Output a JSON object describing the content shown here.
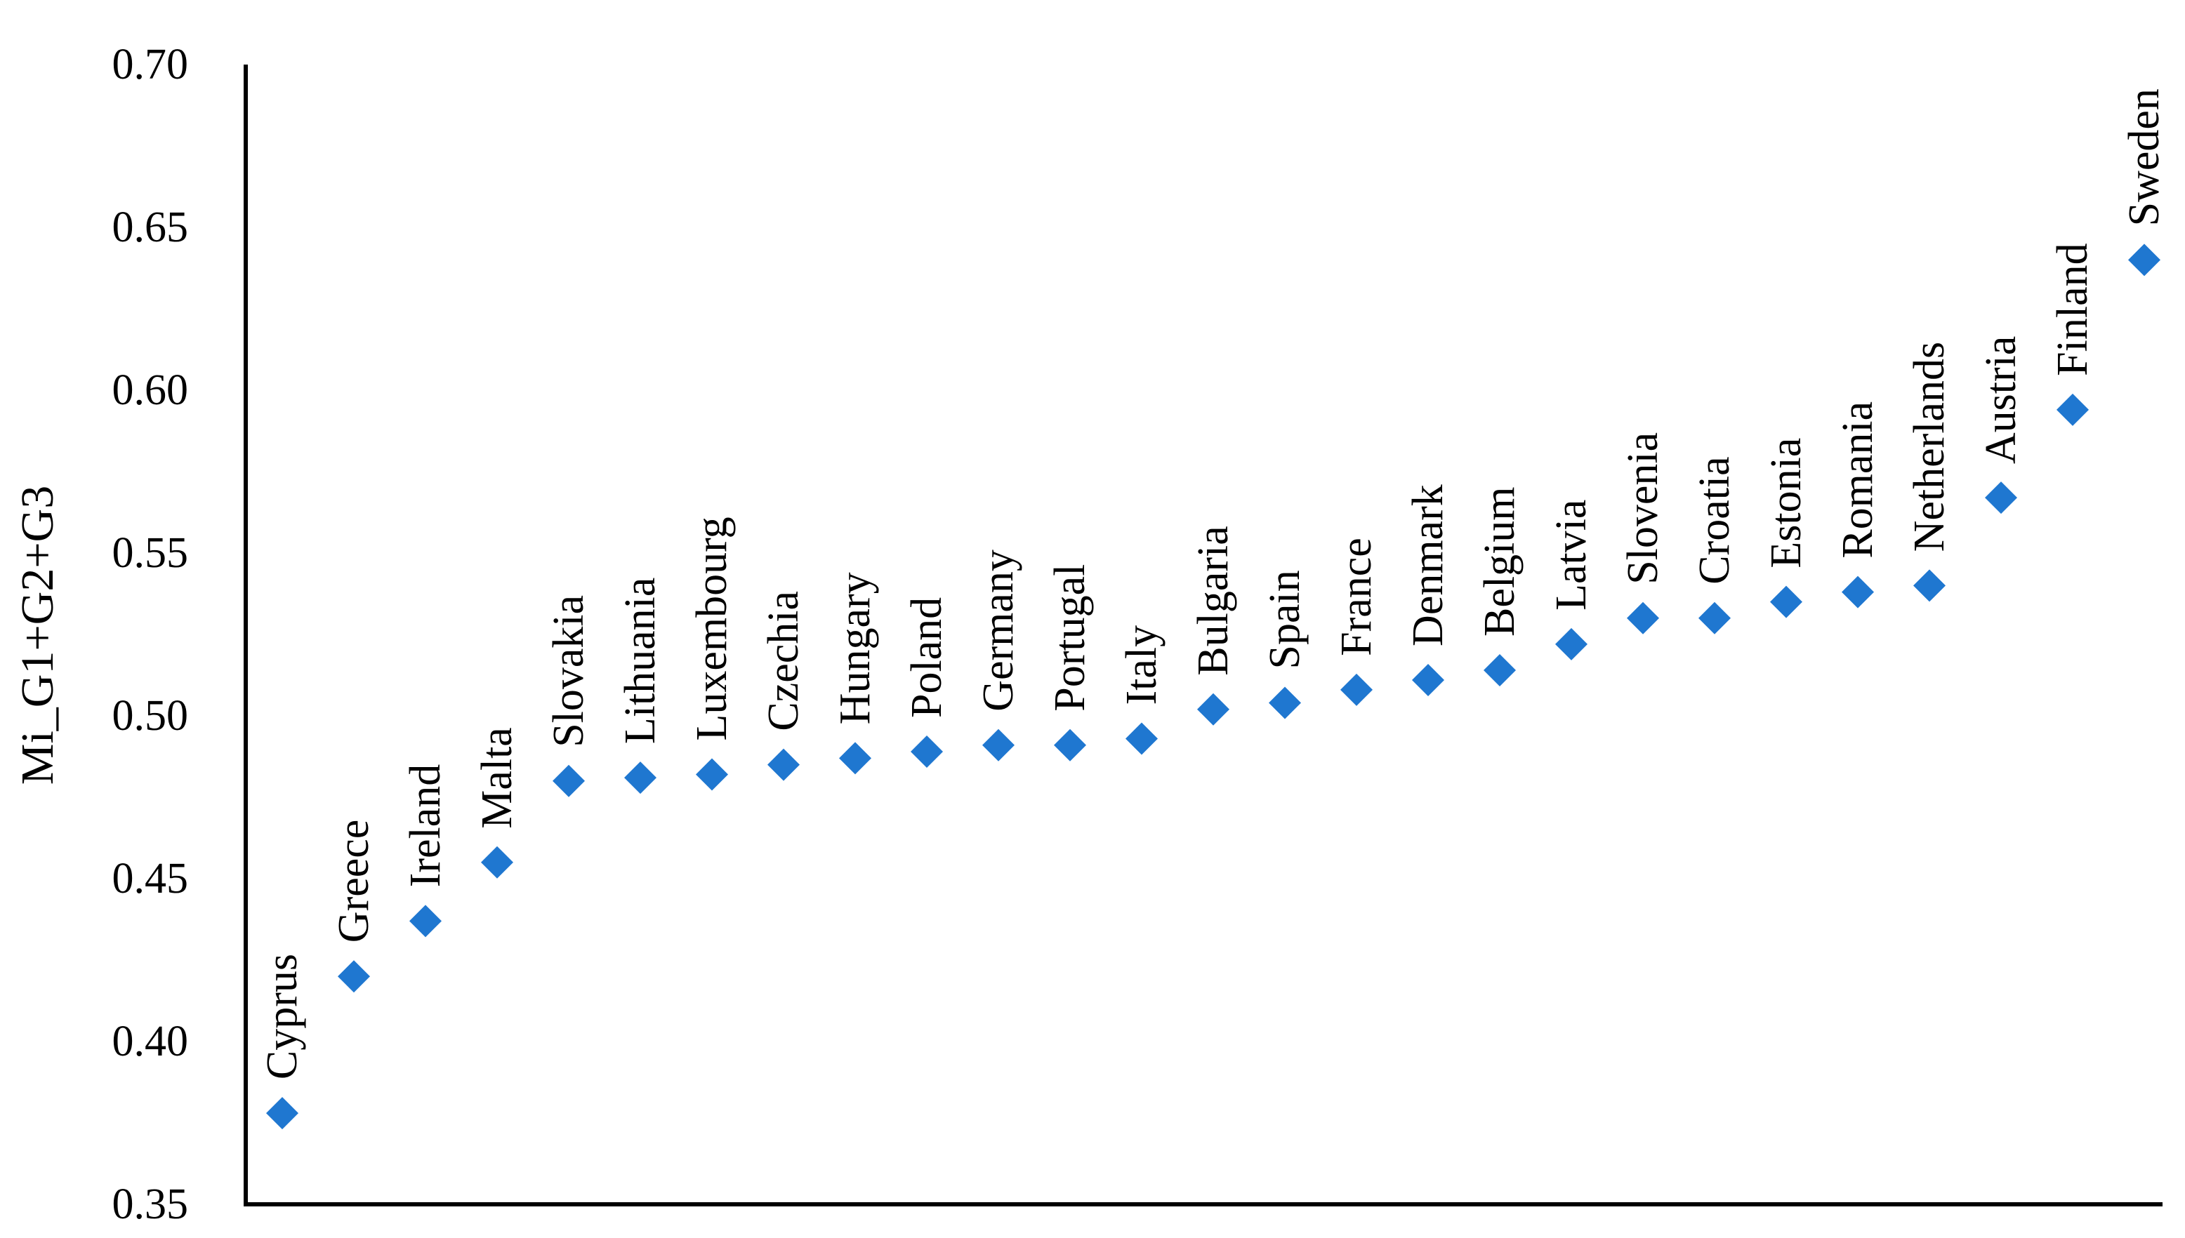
{
  "chart_data": {
    "type": "scatter",
    "ylabel": "Mi_G1+G2+G3",
    "xlabel": "",
    "title": "",
    "ylim": [
      0.35,
      0.7
    ],
    "yticks": [
      "0.35",
      "0.40",
      "0.45",
      "0.50",
      "0.55",
      "0.60",
      "0.65",
      "0.70"
    ],
    "grid": false,
    "legend": "none",
    "marker": "diamond",
    "marker_color": "#1f77d0",
    "points": [
      {
        "label": "Cyprus",
        "value": 0.378
      },
      {
        "label": "Greece",
        "value": 0.42
      },
      {
        "label": "Ireland",
        "value": 0.437
      },
      {
        "label": "Malta",
        "value": 0.455
      },
      {
        "label": "Slovakia",
        "value": 0.48
      },
      {
        "label": "Lithuania",
        "value": 0.481
      },
      {
        "label": "Luxembourg",
        "value": 0.482
      },
      {
        "label": "Czechia",
        "value": 0.485
      },
      {
        "label": "Hungary",
        "value": 0.487
      },
      {
        "label": "Poland",
        "value": 0.489
      },
      {
        "label": "Germany",
        "value": 0.491
      },
      {
        "label": "Portugal",
        "value": 0.491
      },
      {
        "label": "Italy",
        "value": 0.493
      },
      {
        "label": "Bulgaria",
        "value": 0.502
      },
      {
        "label": "Spain",
        "value": 0.504
      },
      {
        "label": "France",
        "value": 0.508
      },
      {
        "label": "Denmark",
        "value": 0.511
      },
      {
        "label": "Belgium",
        "value": 0.514
      },
      {
        "label": "Latvia",
        "value": 0.522
      },
      {
        "label": "Slovenia",
        "value": 0.53
      },
      {
        "label": "Croatia",
        "value": 0.53
      },
      {
        "label": "Estonia",
        "value": 0.535
      },
      {
        "label": "Romania",
        "value": 0.538
      },
      {
        "label": "Netherlands",
        "value": 0.54
      },
      {
        "label": "Austria",
        "value": 0.567
      },
      {
        "label": "Finland",
        "value": 0.594
      },
      {
        "label": "Sweden",
        "value": 0.64
      }
    ]
  }
}
